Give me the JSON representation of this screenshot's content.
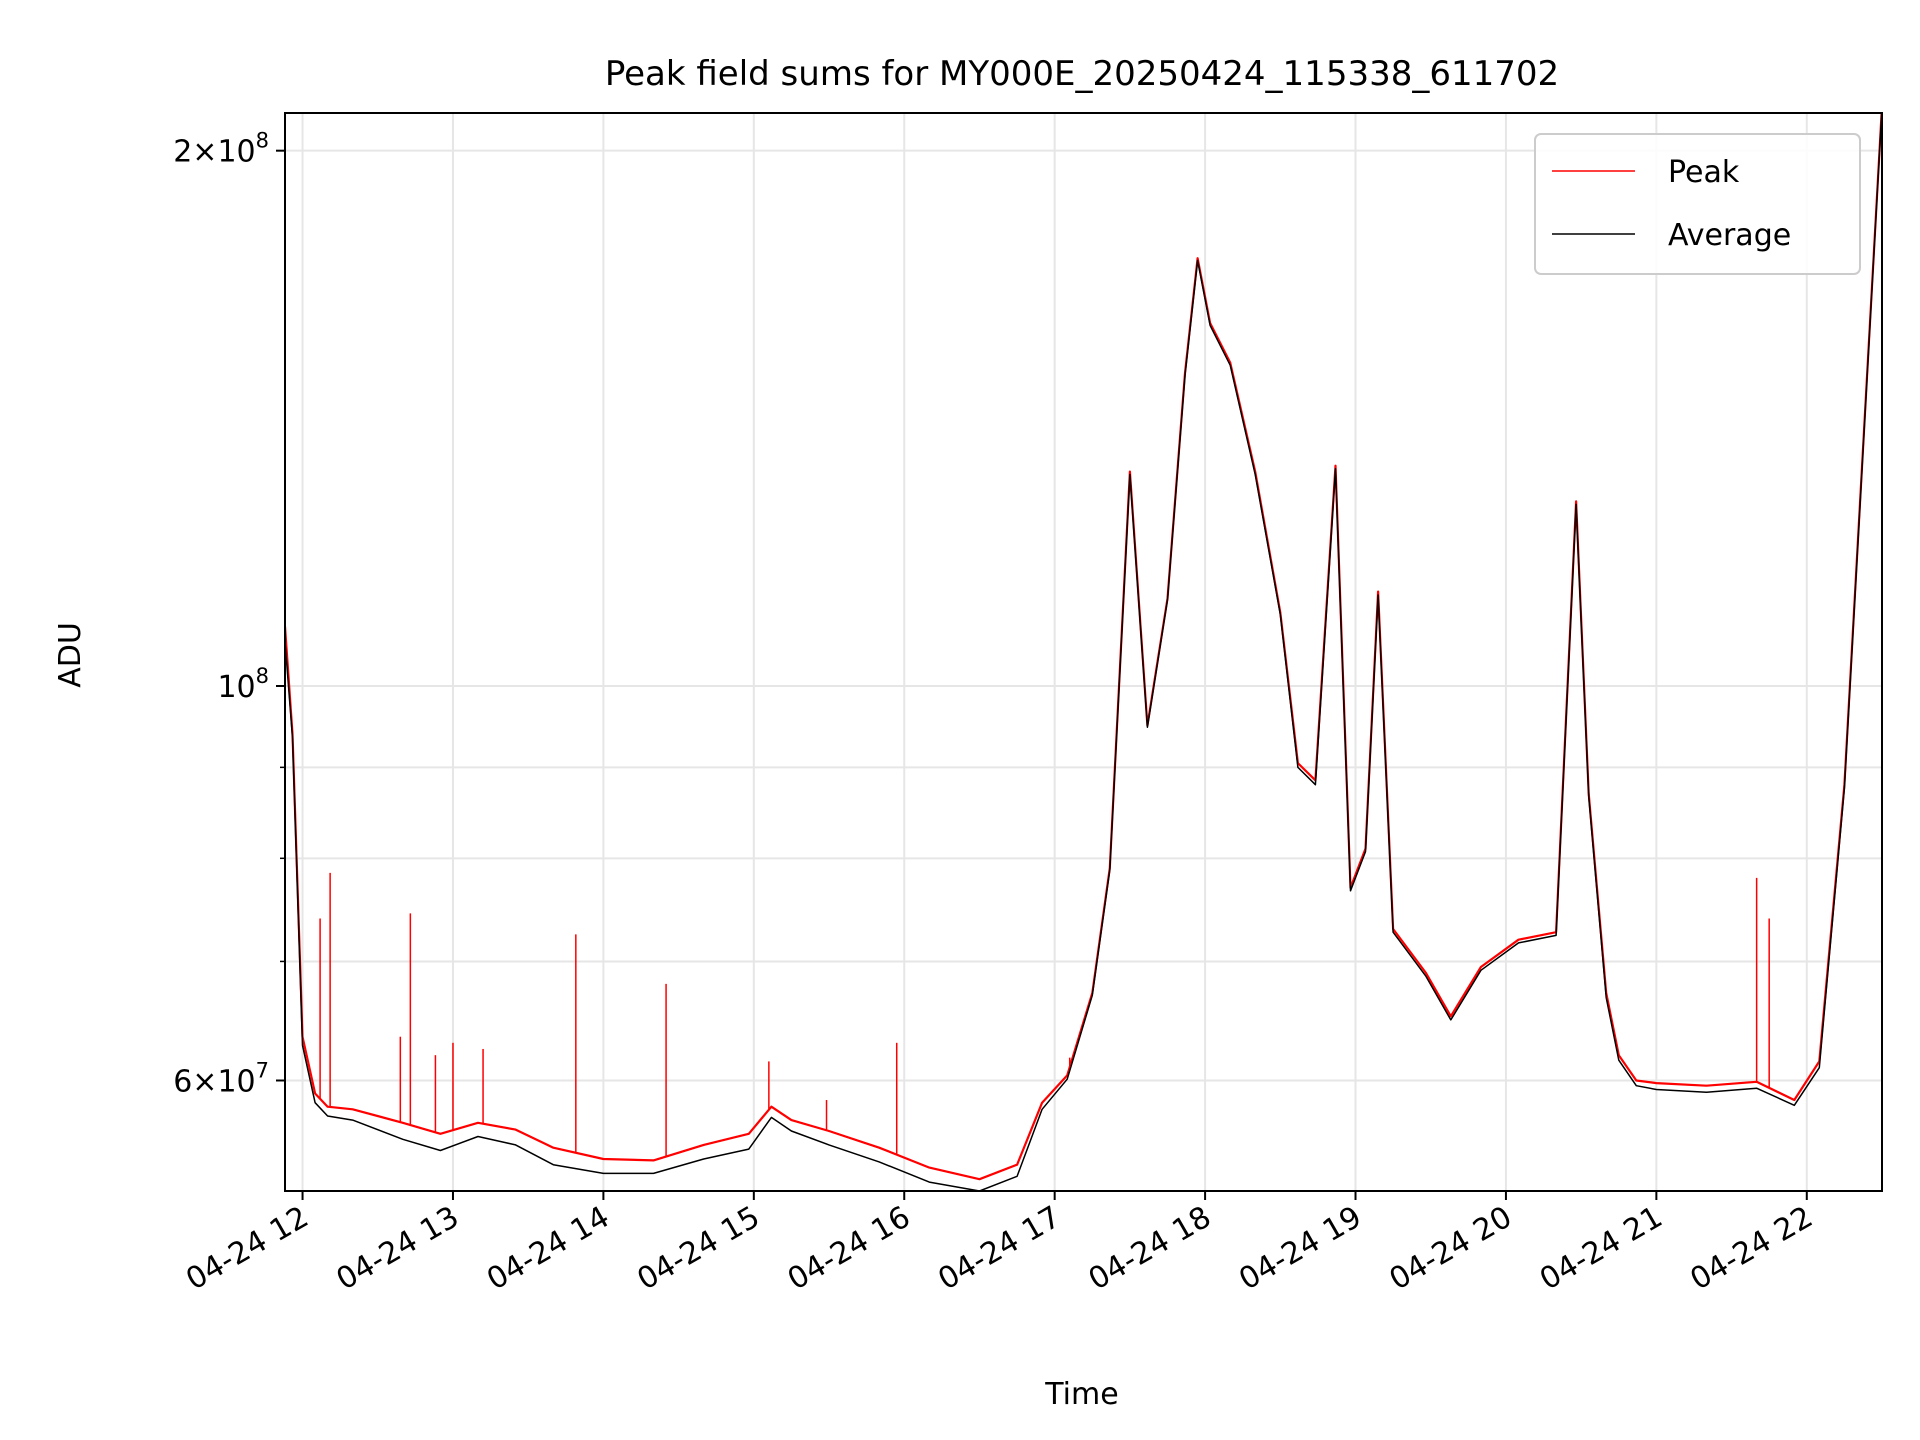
{
  "chart_data": {
    "type": "line",
    "title": "Peak field sums for MY000E_20250424_115338_611702",
    "xlabel": "Time",
    "ylabel": "ADU",
    "x_tick_labels": [
      "04-24 12",
      "04-24 13",
      "04-24 14",
      "04-24 15",
      "04-24 16",
      "04-24 17",
      "04-24 18",
      "04-24 19",
      "04-24 20",
      "04-24 21",
      "04-24 22"
    ],
    "x_ticks": [
      "2025-04-24 12:00",
      "2025-04-24 13:00",
      "2025-04-24 14:00",
      "2025-04-24 15:00",
      "2025-04-24 16:00",
      "2025-04-24 17:00",
      "2025-04-24 18:00",
      "2025-04-24 19:00",
      "2025-04-24 20:00",
      "2025-04-24 21:00",
      "2025-04-24 22:00"
    ],
    "xlim": [
      "2025-04-24 11:53",
      "2025-04-24 22:30"
    ],
    "y_scale": "log",
    "ylim": [
      52000000,
      210000000
    ],
    "y_ticks": [
      {
        "value": 60000000,
        "mantissa": "6",
        "exponent": "7"
      },
      {
        "value": 100000000,
        "mantissa": "",
        "exponent": "8"
      },
      {
        "value": 200000000,
        "mantissa": "2",
        "exponent": "8"
      }
    ],
    "y_minor_ticks": [
      70000000,
      80000000,
      90000000
    ],
    "grid": true,
    "legend_position": "top-right",
    "series": [
      {
        "name": "Peak",
        "color": "#ff0000",
        "x": [
          "2025-04-24 11:53",
          "2025-04-24 11:56",
          "2025-04-24 12:00",
          "2025-04-24 12:05",
          "2025-04-24 12:10",
          "2025-04-24 12:20",
          "2025-04-24 12:40",
          "2025-04-24 12:55",
          "2025-04-24 13:10",
          "2025-04-24 13:25",
          "2025-04-24 13:40",
          "2025-04-24 14:00",
          "2025-04-24 14:20",
          "2025-04-24 14:40",
          "2025-04-24 14:58",
          "2025-04-24 15:07",
          "2025-04-24 15:15",
          "2025-04-24 15:30",
          "2025-04-24 15:50",
          "2025-04-24 16:10",
          "2025-04-24 16:30",
          "2025-04-24 16:45",
          "2025-04-24 16:55",
          "2025-04-24 17:05",
          "2025-04-24 17:15",
          "2025-04-24 17:22",
          "2025-04-24 17:30",
          "2025-04-24 17:37",
          "2025-04-24 17:45",
          "2025-04-24 17:52",
          "2025-04-24 17:57",
          "2025-04-24 18:02",
          "2025-04-24 18:10",
          "2025-04-24 18:20",
          "2025-04-24 18:30",
          "2025-04-24 18:37",
          "2025-04-24 18:44",
          "2025-04-24 18:52",
          "2025-04-24 18:58",
          "2025-04-24 19:04",
          "2025-04-24 19:09",
          "2025-04-24 19:15",
          "2025-04-24 19:28",
          "2025-04-24 19:38",
          "2025-04-24 19:50",
          "2025-04-24 20:05",
          "2025-04-24 20:20",
          "2025-04-24 20:28",
          "2025-04-24 20:33",
          "2025-04-24 20:40",
          "2025-04-24 20:45",
          "2025-04-24 20:52",
          "2025-04-24 21:00",
          "2025-04-24 21:20",
          "2025-04-24 21:40",
          "2025-04-24 21:55",
          "2025-04-24 22:05",
          "2025-04-24 22:15",
          "2025-04-24 22:30"
        ],
        "y": [
          108000000,
          94000000,
          63500000,
          59000000,
          58000000,
          57800000,
          56800000,
          56000000,
          56800000,
          56300000,
          55000000,
          54200000,
          54100000,
          55200000,
          56000000,
          58000000,
          57000000,
          56200000,
          55000000,
          53600000,
          52800000,
          53800000,
          58300000,
          60400000,
          67200000,
          79000000,
          132000000,
          95000000,
          112000000,
          150000000,
          174000000,
          160000000,
          152000000,
          132000000,
          110000000,
          90500000,
          88500000,
          133000000,
          77000000,
          81000000,
          113000000,
          73000000,
          69000000,
          65200000,
          69500000,
          72000000,
          72700000,
          127000000,
          87000000,
          67200000,
          62000000,
          60000000,
          59800000,
          59600000,
          59900000,
          58500000,
          61500000,
          88000000,
          212000000
        ]
      },
      {
        "name": "Average",
        "color": "#000000",
        "x": [
          "2025-04-24 11:53",
          "2025-04-24 11:56",
          "2025-04-24 12:00",
          "2025-04-24 12:05",
          "2025-04-24 12:10",
          "2025-04-24 12:20",
          "2025-04-24 12:40",
          "2025-04-24 12:55",
          "2025-04-24 13:10",
          "2025-04-24 13:25",
          "2025-04-24 13:40",
          "2025-04-24 14:00",
          "2025-04-24 14:20",
          "2025-04-24 14:40",
          "2025-04-24 14:58",
          "2025-04-24 15:07",
          "2025-04-24 15:15",
          "2025-04-24 15:30",
          "2025-04-24 15:50",
          "2025-04-24 16:10",
          "2025-04-24 16:30",
          "2025-04-24 16:45",
          "2025-04-24 16:55",
          "2025-04-24 17:05",
          "2025-04-24 17:15",
          "2025-04-24 17:22",
          "2025-04-24 17:30",
          "2025-04-24 17:37",
          "2025-04-24 17:45",
          "2025-04-24 17:52",
          "2025-04-24 17:57",
          "2025-04-24 18:02",
          "2025-04-24 18:10",
          "2025-04-24 18:20",
          "2025-04-24 18:30",
          "2025-04-24 18:37",
          "2025-04-24 18:44",
          "2025-04-24 18:52",
          "2025-04-24 18:58",
          "2025-04-24 19:04",
          "2025-04-24 19:09",
          "2025-04-24 19:15",
          "2025-04-24 19:28",
          "2025-04-24 19:38",
          "2025-04-24 19:50",
          "2025-04-24 20:05",
          "2025-04-24 20:20",
          "2025-04-24 20:28",
          "2025-04-24 20:33",
          "2025-04-24 20:40",
          "2025-04-24 20:45",
          "2025-04-24 20:52",
          "2025-04-24 21:00",
          "2025-04-24 21:20",
          "2025-04-24 21:40",
          "2025-04-24 21:55",
          "2025-04-24 22:05",
          "2025-04-24 22:15",
          "2025-04-24 22:30"
        ],
        "y": [
          106000000,
          93500000,
          62800000,
          58300000,
          57300000,
          57000000,
          55600000,
          54800000,
          55800000,
          55200000,
          53800000,
          53200000,
          53200000,
          54200000,
          54900000,
          57200000,
          56200000,
          55200000,
          54000000,
          52600000,
          52000000,
          53000000,
          57800000,
          60100000,
          67000000,
          78800000,
          131500000,
          94800000,
          111800000,
          149500000,
          173500000,
          159500000,
          151500000,
          131500000,
          109700000,
          90000000,
          88000000,
          132500000,
          76700000,
          80700000,
          112500000,
          72700000,
          68700000,
          64900000,
          69200000,
          71700000,
          72400000,
          126500000,
          86700000,
          66800000,
          61600000,
          59600000,
          59300000,
          59100000,
          59400000,
          58100000,
          61000000,
          87600000,
          211500000
        ]
      }
    ],
    "spikes": [
      {
        "x": "2025-04-24 12:07",
        "y": 74000000
      },
      {
        "x": "2025-04-24 12:11",
        "y": 78500000
      },
      {
        "x": "2025-04-24 12:39",
        "y": 63500000
      },
      {
        "x": "2025-04-24 12:43",
        "y": 74500000
      },
      {
        "x": "2025-04-24 12:53",
        "y": 62000000
      },
      {
        "x": "2025-04-24 13:00",
        "y": 63000000
      },
      {
        "x": "2025-04-24 13:12",
        "y": 62500000
      },
      {
        "x": "2025-04-24 13:49",
        "y": 72500000
      },
      {
        "x": "2025-04-24 14:25",
        "y": 68000000
      },
      {
        "x": "2025-04-24 15:06",
        "y": 61500000
      },
      {
        "x": "2025-04-24 15:29",
        "y": 58500000
      },
      {
        "x": "2025-04-24 15:57",
        "y": 63000000
      },
      {
        "x": "2025-04-24 17:06",
        "y": 61800000
      },
      {
        "x": "2025-04-24 21:40",
        "y": 78000000
      },
      {
        "x": "2025-04-24 21:45",
        "y": 74000000
      }
    ]
  }
}
